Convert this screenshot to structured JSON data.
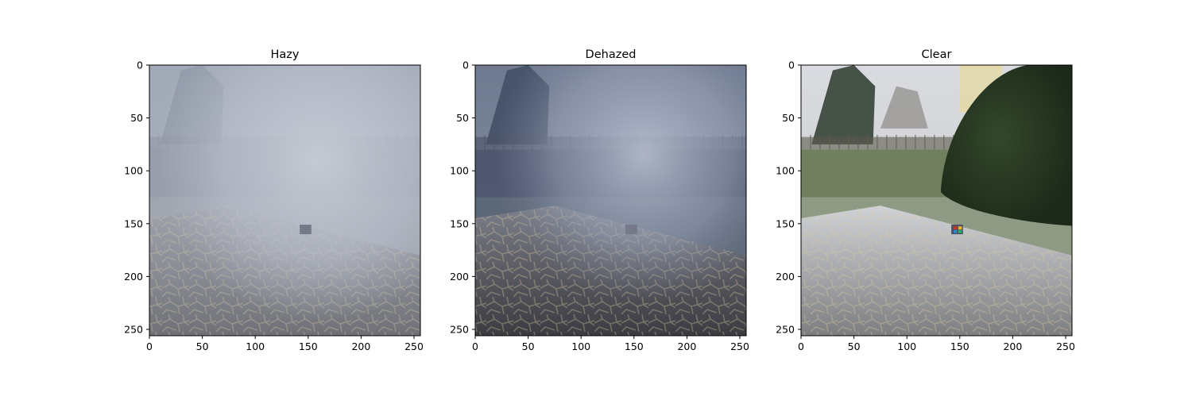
{
  "figure": {
    "panels": [
      {
        "title": "Hazy",
        "scene": "hazy",
        "x_ticks": [
          "0",
          "50",
          "100",
          "150",
          "200",
          "250"
        ],
        "y_ticks": [
          "0",
          "50",
          "100",
          "150",
          "200",
          "250"
        ]
      },
      {
        "title": "Dehazed",
        "scene": "dehazed",
        "x_ticks": [
          "0",
          "50",
          "100",
          "150",
          "200",
          "250"
        ],
        "y_ticks": [
          "0",
          "50",
          "100",
          "150",
          "200",
          "250"
        ]
      },
      {
        "title": "Clear",
        "scene": "clear",
        "x_ticks": [
          "0",
          "50",
          "100",
          "150",
          "200",
          "250"
        ],
        "y_ticks": [
          "0",
          "50",
          "100",
          "150",
          "200",
          "250"
        ]
      }
    ]
  }
}
